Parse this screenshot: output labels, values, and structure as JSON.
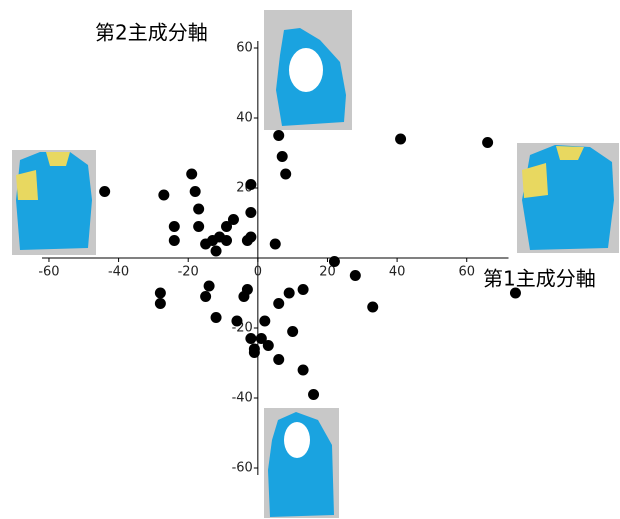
{
  "chart_data": {
    "type": "scatter",
    "x_label": "第1主成分軸",
    "y_label": "第2主成分軸",
    "x": [
      -44,
      -27,
      -19,
      -18,
      -17,
      -24,
      -24,
      -17,
      -15,
      -13,
      -11,
      -12,
      -9,
      -7,
      -9,
      -2,
      -2,
      -2,
      -3,
      5,
      6,
      7,
      8,
      41,
      66,
      22,
      28,
      33,
      74,
      13,
      9,
      6,
      -28,
      -28,
      -15,
      -14,
      -3,
      -4,
      -12,
      -6,
      2,
      -2,
      -1,
      1,
      3,
      6,
      10,
      13,
      16,
      -1
    ],
    "values": [
      19,
      18,
      24,
      19,
      14,
      9,
      5,
      9,
      4,
      5,
      6,
      2,
      9,
      11,
      5,
      21,
      13,
      6,
      5,
      4,
      35,
      29,
      24,
      34,
      33,
      -1,
      -5,
      -14,
      -10,
      -9,
      -10,
      -13,
      -10,
      -13,
      -11,
      -8,
      -9,
      -11,
      -17,
      -18,
      -18,
      -23,
      -26,
      -23,
      -25,
      -29,
      -21,
      -32,
      -39,
      -27
    ],
    "color": "#000000",
    "xlim": [
      -62,
      72
    ],
    "ylim": [
      -62,
      62
    ],
    "xticks": [
      -60,
      -40,
      -20,
      0,
      20,
      40,
      60
    ],
    "yticks": [
      -60,
      -40,
      -20,
      20,
      40,
      60
    ]
  }
}
